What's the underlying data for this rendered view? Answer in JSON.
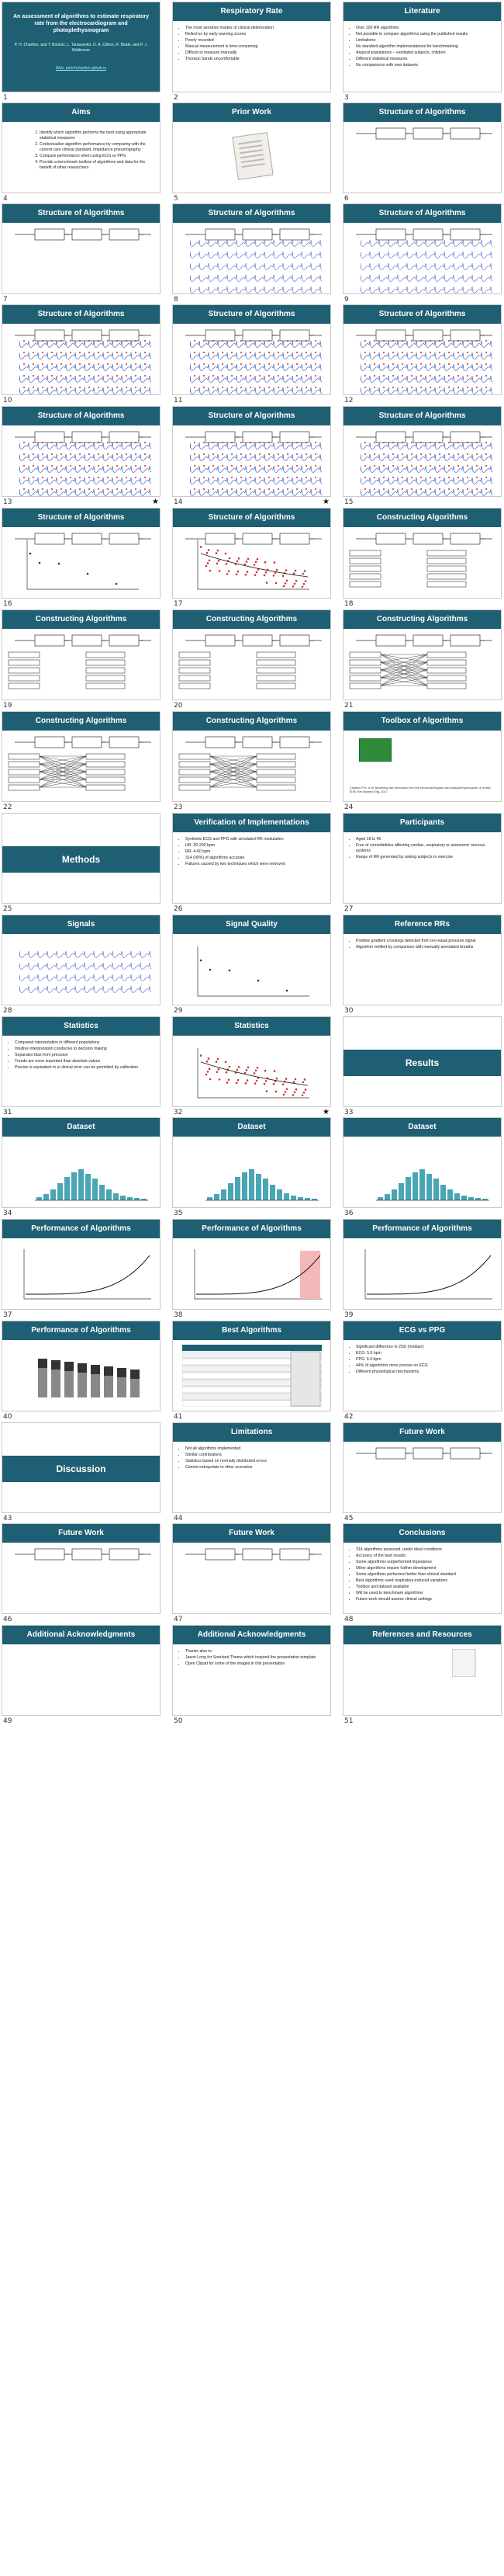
{
  "slides": [
    {
      "n": "1",
      "type": "title",
      "title": "An assessment of algorithms to estimate respiratory rate from the electrocardiogram and photoplethysmogram",
      "authors": "P. H. Charlton, and T. Bonnici, L. Tarassenko, D. A. Clifton, R. Beale, and P. J. Watkinson",
      "link": "Web: peterhcharlton.github.io"
    },
    {
      "n": "2",
      "type": "bullets",
      "title": "Respiratory Rate",
      "bullets": [
        "The most sensitive marker of clinical deterioration",
        "Relied-on by early warning scores",
        "Poorly recorded",
        "Manual measurement is time-consuming",
        "Difficult to measure manually",
        "Thoracic bands uncomfortable"
      ]
    },
    {
      "n": "3",
      "type": "bullets",
      "title": "Literature",
      "bullets": [
        "Over 100 RR algorithms",
        "Not possible to compare algorithms using the published results",
        "Limitations:",
        "No standard algorithm implementations for benchmarking",
        "Atypical populations – ventilated subjects, children",
        "Different statistical measures",
        "No comparisons with new datasets"
      ]
    },
    {
      "n": "4",
      "type": "aims",
      "title": "Aims",
      "items": [
        "Identify which algorithm performs the best using appropriate statistical measures",
        "Contextualise algorithm performance by comparing with the current care clinical standard, impedance pneumography",
        "Compare performance when using ECG vs PPG",
        "Provide a benchmark toolbox of algorithms and data for the benefit of other researchers"
      ]
    },
    {
      "n": "5",
      "type": "prior",
      "title": "Prior Work"
    },
    {
      "n": "6",
      "type": "struct",
      "title": "Structure of Algorithms"
    },
    {
      "n": "7",
      "type": "struct",
      "title": "Structure of Algorithms"
    },
    {
      "n": "8",
      "type": "struct",
      "title": "Structure of Algorithms"
    },
    {
      "n": "9",
      "type": "struct",
      "title": "Structure of Algorithms"
    },
    {
      "n": "10",
      "type": "struct",
      "title": "Structure of Algorithms"
    },
    {
      "n": "11",
      "type": "struct",
      "title": "Structure of Algorithms"
    },
    {
      "n": "12",
      "type": "struct",
      "title": "Structure of Algorithms"
    },
    {
      "n": "13",
      "type": "struct",
      "title": "Structure of Algorithms",
      "star": "★"
    },
    {
      "n": "14",
      "type": "struct",
      "title": "Structure of Algorithms",
      "star": "★"
    },
    {
      "n": "15",
      "type": "struct",
      "title": "Structure of Algorithms"
    },
    {
      "n": "16",
      "type": "scatter",
      "title": "Structure of Algorithms"
    },
    {
      "n": "17",
      "type": "scatter",
      "title": "Structure of Algorithms"
    },
    {
      "n": "18",
      "type": "construct",
      "title": "Constructing Algorithms"
    },
    {
      "n": "19",
      "type": "construct",
      "title": "Constructing Algorithms"
    },
    {
      "n": "20",
      "type": "construct",
      "title": "Constructing Algorithms"
    },
    {
      "n": "21",
      "type": "construct",
      "title": "Constructing Algorithms"
    },
    {
      "n": "22",
      "type": "construct",
      "title": "Constructing Algorithms"
    },
    {
      "n": "23",
      "type": "construct",
      "title": "Constructing Algorithms"
    },
    {
      "n": "24",
      "type": "toolbox",
      "title": "Toolbox of Algorithms",
      "caption": "Charlton P.H. et al. Breathing rate estimation from the electrocardiogram and photoplethysmogram: a review, IEEE Rev Biomed Eng, 2017"
    },
    {
      "n": "25",
      "type": "section",
      "title": "Methods"
    },
    {
      "n": "26",
      "type": "bullets",
      "title": "Verification of Implementations",
      "bullets": [
        "Synthetic ECG and PPG with simulated RR modulation",
        "HR: 30-200 bpm",
        "RR: 4-60 bpm",
        "314 (99%) of algorithms accurate",
        "Failures caused by two techniques which were removed"
      ]
    },
    {
      "n": "27",
      "type": "bullets",
      "title": "Participants",
      "bullets": [
        "Aged 18 to 45",
        "Free of comorbidities affecting cardiac, respiratory or autonomic nervous systems",
        "Range of RR generated by asking subjects to exercise"
      ]
    },
    {
      "n": "28",
      "type": "signals",
      "title": "Signals"
    },
    {
      "n": "29",
      "type": "quality",
      "title": "Signal Quality"
    },
    {
      "n": "30",
      "type": "bullets",
      "title": "Reference RRs",
      "bullets": [
        "Positive gradient crossings detected from oro-nasal pressure signal",
        "Algorithm verified by comparison with manually annotated breaths"
      ]
    },
    {
      "n": "31",
      "type": "bullets",
      "title": "Statistics",
      "bullets": [
        "Compared interpretation in different populations",
        "Intuitive interpretation conducive to decision making",
        "Separates bias from precision",
        "Trends are more important than absolute values",
        "Precise is equivalent to a clinical error can be permitted by calibration"
      ]
    },
    {
      "n": "32",
      "type": "ba",
      "title": "Statistics",
      "star": "★"
    },
    {
      "n": "33",
      "type": "section",
      "title": "Results"
    },
    {
      "n": "34",
      "type": "dataset",
      "title": "Dataset"
    },
    {
      "n": "35",
      "type": "dataset",
      "title": "Dataset"
    },
    {
      "n": "36",
      "type": "dataset",
      "title": "Dataset"
    },
    {
      "n": "37",
      "type": "perf",
      "title": "Performance of Algorithms"
    },
    {
      "n": "38",
      "type": "perf",
      "title": "Performance of Algorithms"
    },
    {
      "n": "39",
      "type": "perf",
      "title": "Performance of Algorithms"
    },
    {
      "n": "40",
      "type": "perfbar",
      "title": "Performance of Algorithms"
    },
    {
      "n": "41",
      "type": "table",
      "title": "Best Algorithms"
    },
    {
      "n": "42",
      "type": "bullets",
      "title": "ECG vs PPG",
      "bullets": [
        "Significant difference in 2SD (median):",
        "ECG: 5.6 bpm",
        "PPG: 6.4 bpm",
        "44% of algorithms more precise on ECG",
        "Different physiological mechanisms"
      ]
    },
    {
      "n": "43",
      "type": "section",
      "title": "Discussion"
    },
    {
      "n": "44",
      "type": "bullets",
      "title": "Limitations",
      "bullets": [
        "Not all algorithms implemented",
        "Similar contributions",
        "Statistics based on normally distributed errors",
        "Cannot extrapolate to other scenarios"
      ]
    },
    {
      "n": "45",
      "type": "future",
      "title": "Future Work"
    },
    {
      "n": "46",
      "type": "future",
      "title": "Future Work"
    },
    {
      "n": "47",
      "type": "future",
      "title": "Future Work"
    },
    {
      "n": "48",
      "type": "bullets",
      "title": "Conclusions",
      "bullets": [
        "314 algorithms assessed, under ideal conditions",
        "Accuracy of the best results:",
        "Some algorithms outperformed impedance",
        "Other algorithms require further development",
        "Some algorithms performed better than clinical standard",
        "Best algorithms used respiratory-induced variations",
        "Toolbox and dataset available",
        "Will be used to benchmark algorithms",
        "Future work should assess clinical settings"
      ]
    },
    {
      "n": "49",
      "type": "ack",
      "title": "Additional Acknowledgments"
    },
    {
      "n": "50",
      "type": "bullets",
      "title": "Additional Acknowledgments",
      "bullets": [
        "Thanks also to:",
        "Jason Long for Soerland Theme which inspired the presentation template",
        "Open Clipart for some of the images in this presentation"
      ]
    },
    {
      "n": "51",
      "type": "refs",
      "title": "References and Resources"
    }
  ]
}
